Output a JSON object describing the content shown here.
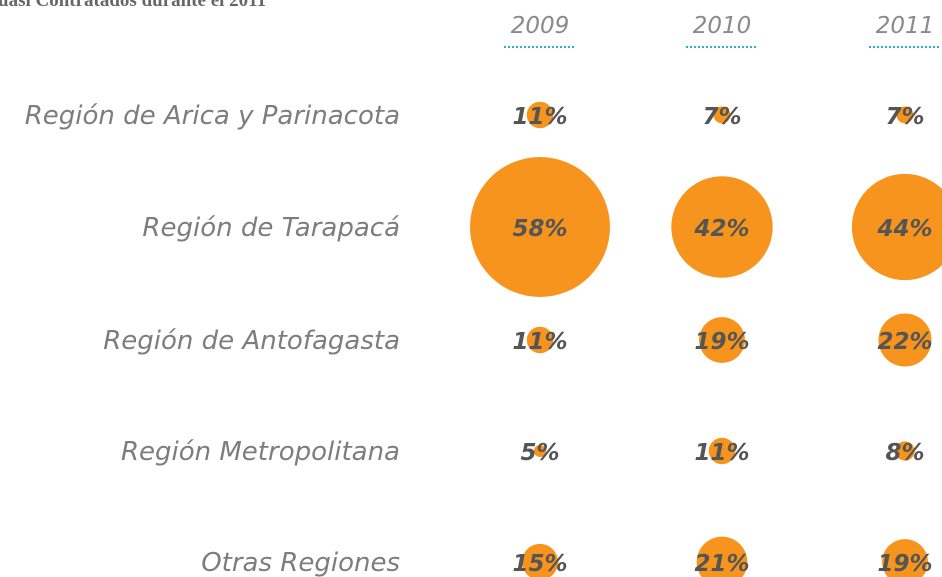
{
  "chart_data": {
    "type": "bubble",
    "title": "uasi Contratados durante el 2011",
    "categories": [
      "Región de Arica y Parinacota",
      "Región de Tarapacá",
      "Región de Antofagasta",
      "Región Metropolitana",
      "Otras Regiones"
    ],
    "series": [
      {
        "name": "2009",
        "color": "#f7941d",
        "values": [
          11,
          58,
          11,
          5,
          15
        ],
        "value_labels": [
          "11%",
          "58%",
          "11%",
          "5%",
          "15%"
        ]
      },
      {
        "name": "2010",
        "color": "#f7941d",
        "values": [
          7,
          42,
          19,
          11,
          21
        ],
        "value_labels": [
          "7%",
          "42%",
          "19%",
          "11%",
          "21%"
        ]
      },
      {
        "name": "2011",
        "color": "#f7941d",
        "values": [
          7,
          44,
          22,
          8,
          19
        ],
        "value_labels": [
          "7%",
          "44%",
          "22%",
          "8%",
          "19%"
        ]
      }
    ]
  }
}
